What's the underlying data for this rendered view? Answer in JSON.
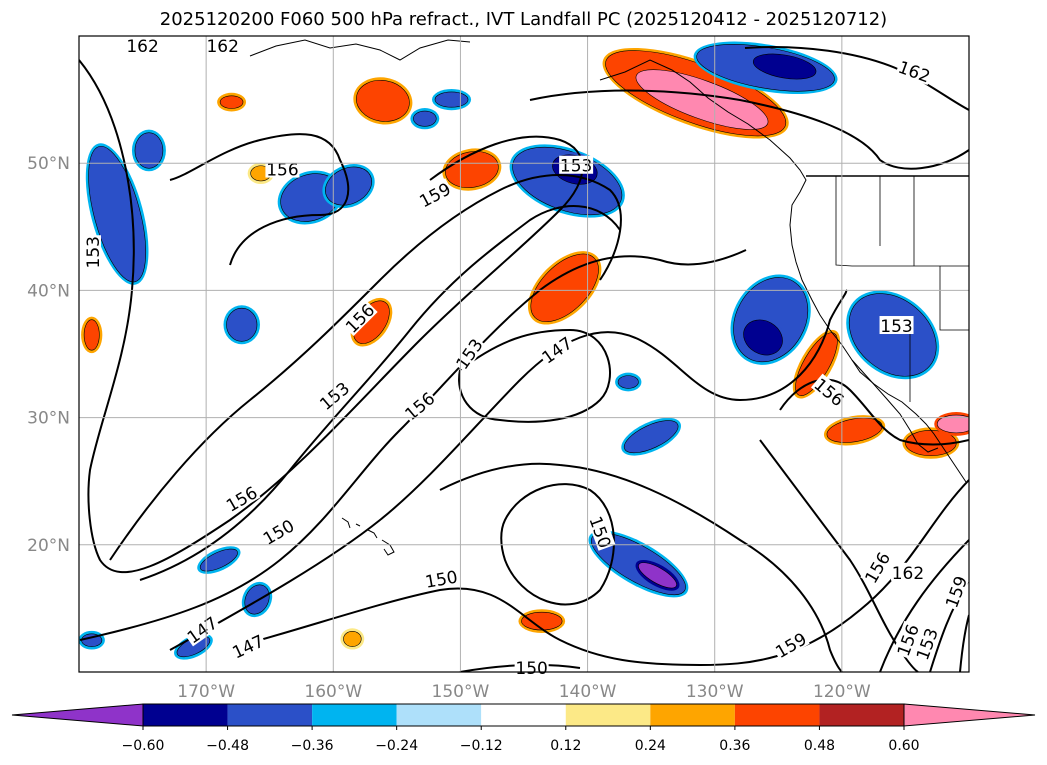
{
  "title": "2025120200 F060 500 hPa refract., IVT Landfall PC (2025120412 - 2025120712)",
  "chart_data": {
    "type": "contour-map",
    "title": "2025120200 F060 500 hPa refract., IVT Landfall PC (2025120412 - 2025120712)",
    "lon_range": [
      -180,
      -110
    ],
    "lat_range": [
      10,
      60
    ],
    "lat_ticks": [
      {
        "value": 20,
        "label": "20°N"
      },
      {
        "value": 30,
        "label": "30°N"
      },
      {
        "value": 40,
        "label": "40°N"
      },
      {
        "value": 50,
        "label": "50°N"
      }
    ],
    "lon_ticks": [
      {
        "value": -170,
        "label": "170°W"
      },
      {
        "value": -160,
        "label": "160°W"
      },
      {
        "value": -150,
        "label": "150°W"
      },
      {
        "value": -140,
        "label": "140°W"
      },
      {
        "value": -130,
        "label": "130°W"
      },
      {
        "value": -120,
        "label": "120°W"
      }
    ],
    "contour_labels": [
      {
        "text": "162",
        "lon": -175.0,
        "lat": 59.2,
        "rot": 0
      },
      {
        "text": "162",
        "lon": -168.7,
        "lat": 59.2,
        "rot": 0
      },
      {
        "text": "162",
        "lon": -114.3,
        "lat": 57.2,
        "rot": 20
      },
      {
        "text": "156",
        "lon": -164.0,
        "lat": 49.5,
        "rot": 0
      },
      {
        "text": "159",
        "lon": -152.0,
        "lat": 47.5,
        "rot": -28
      },
      {
        "text": "153",
        "lon": -178.9,
        "lat": 43.0,
        "rot": -90
      },
      {
        "text": "153",
        "lon": -140.9,
        "lat": 49.8,
        "rot": 0
      },
      {
        "text": "156",
        "lon": -157.9,
        "lat": 37.8,
        "rot": -45
      },
      {
        "text": "153",
        "lon": -159.9,
        "lat": 31.7,
        "rot": -40
      },
      {
        "text": "153",
        "lon": -149.3,
        "lat": 35.0,
        "rot": -55
      },
      {
        "text": "156",
        "lon": -153.2,
        "lat": 30.9,
        "rot": -40
      },
      {
        "text": "147",
        "lon": -142.4,
        "lat": 35.3,
        "rot": -35
      },
      {
        "text": "156",
        "lon": -121.0,
        "lat": 32.0,
        "rot": 40
      },
      {
        "text": "153",
        "lon": -115.7,
        "lat": 37.2,
        "rot": 0
      },
      {
        "text": "156",
        "lon": -167.2,
        "lat": 23.6,
        "rot": -30
      },
      {
        "text": "150",
        "lon": -164.3,
        "lat": 21.0,
        "rot": -30
      },
      {
        "text": "150",
        "lon": -151.5,
        "lat": 17.3,
        "rot": -10
      },
      {
        "text": "150",
        "lon": -139.0,
        "lat": 21.0,
        "rot": 70
      },
      {
        "text": "147",
        "lon": -170.3,
        "lat": 13.3,
        "rot": -35
      },
      {
        "text": "147",
        "lon": -166.7,
        "lat": 12.0,
        "rot": -25
      },
      {
        "text": "150",
        "lon": -144.4,
        "lat": 10.3,
        "rot": 0
      },
      {
        "text": "159",
        "lon": -124.0,
        "lat": 12.1,
        "rot": -30
      },
      {
        "text": "156",
        "lon": -117.2,
        "lat": 18.2,
        "rot": -60
      },
      {
        "text": "162",
        "lon": -114.8,
        "lat": 17.8,
        "rot": 0
      },
      {
        "text": "159",
        "lon": -111.0,
        "lat": 16.3,
        "rot": -70
      },
      {
        "text": "156",
        "lon": -114.8,
        "lat": 12.5,
        "rot": -70
      },
      {
        "text": "153",
        "lon": -113.3,
        "lat": 12.2,
        "rot": -70
      }
    ],
    "colorbar": {
      "ticks": [
        "−0.60",
        "−0.48",
        "−0.36",
        "−0.24",
        "−0.12",
        "0.12",
        "0.24",
        "0.36",
        "0.48",
        "0.60"
      ],
      "colors": [
        "#8f33c9",
        "#000090",
        "#2b50c8",
        "#00b4f0",
        "#aee0fa",
        "#ffffff",
        "#fce987",
        "#fea500",
        "#fd4400",
        "#b22222",
        "#ff88b0"
      ]
    },
    "shading_blobs": [
      {
        "lon": -179.0,
        "lat": 36.5,
        "rx": 0.6,
        "ry": 1.2,
        "color": "#fd4400",
        "rot": 0
      },
      {
        "lon": -177.0,
        "lat": 46.0,
        "rx": 1.8,
        "ry": 5.5,
        "color": "#2b50c8",
        "rot": -15
      },
      {
        "lon": -174.5,
        "lat": 51.0,
        "rx": 1.1,
        "ry": 1.4,
        "color": "#2b50c8",
        "rot": 0
      },
      {
        "lon": -168.0,
        "lat": 54.8,
        "rx": 0.9,
        "ry": 0.5,
        "color": "#fd4400",
        "rot": 0
      },
      {
        "lon": -165.7,
        "lat": 49.2,
        "rx": 0.8,
        "ry": 0.6,
        "color": "#fea500",
        "rot": 0
      },
      {
        "lon": -161.8,
        "lat": 47.3,
        "rx": 2.4,
        "ry": 1.8,
        "color": "#2b50c8",
        "rot": -20
      },
      {
        "lon": -158.8,
        "lat": 48.2,
        "rx": 1.9,
        "ry": 1.4,
        "color": "#2b50c8",
        "rot": -25
      },
      {
        "lon": -156.1,
        "lat": 54.9,
        "rx": 2.1,
        "ry": 1.6,
        "color": "#fd4400",
        "rot": 10
      },
      {
        "lon": -150.7,
        "lat": 55.0,
        "rx": 1.3,
        "ry": 0.6,
        "color": "#2b50c8",
        "rot": 0
      },
      {
        "lon": -152.8,
        "lat": 53.5,
        "rx": 0.9,
        "ry": 0.6,
        "color": "#2b50c8",
        "rot": 0
      },
      {
        "lon": -167.2,
        "lat": 37.3,
        "rx": 1.2,
        "ry": 1.3,
        "color": "#2b50c8",
        "rot": 0
      },
      {
        "lon": -157.0,
        "lat": 37.5,
        "rx": 1.1,
        "ry": 1.9,
        "color": "#fd4400",
        "rot": 35
      },
      {
        "lon": -149.1,
        "lat": 49.5,
        "rx": 2.1,
        "ry": 1.4,
        "color": "#fd4400",
        "rot": -10
      },
      {
        "lon": -141.6,
        "lat": 48.6,
        "rx": 4.5,
        "ry": 2.3,
        "color": "#2b50c8",
        "rot": 20
      },
      {
        "lon": -141.0,
        "lat": 49.5,
        "rx": 1.8,
        "ry": 1.1,
        "color": "#000090",
        "rot": 15
      },
      {
        "lon": -141.8,
        "lat": 40.2,
        "rx": 1.8,
        "ry": 3.3,
        "color": "#fd4400",
        "rot": 45
      },
      {
        "lon": -131.5,
        "lat": 55.5,
        "rx": 7.5,
        "ry": 2.3,
        "color": "#fd4400",
        "rot": 20
      },
      {
        "lon": -131.0,
        "lat": 55.0,
        "rx": 5.5,
        "ry": 1.5,
        "color": "#ff88b0",
        "rot": 20
      },
      {
        "lon": -126.0,
        "lat": 57.5,
        "rx": 5.5,
        "ry": 1.6,
        "color": "#2b50c8",
        "rot": 10
      },
      {
        "lon": -124.5,
        "lat": 57.6,
        "rx": 2.5,
        "ry": 0.9,
        "color": "#000090",
        "rot": 10
      },
      {
        "lon": -135.0,
        "lat": 28.5,
        "rx": 2.3,
        "ry": 0.9,
        "color": "#2b50c8",
        "rot": -25
      },
      {
        "lon": -136.8,
        "lat": 32.8,
        "rx": 0.8,
        "ry": 0.5,
        "color": "#2b50c8",
        "rot": 0
      },
      {
        "lon": -125.6,
        "lat": 37.7,
        "rx": 2.7,
        "ry": 3.5,
        "color": "#2b50c8",
        "rot": 30
      },
      {
        "lon": -126.2,
        "lat": 36.3,
        "rx": 1.6,
        "ry": 1.3,
        "color": "#000090",
        "rot": 30
      },
      {
        "lon": -122.0,
        "lat": 34.2,
        "rx": 1.0,
        "ry": 2.8,
        "color": "#fd4400",
        "rot": 30
      },
      {
        "lon": -116.0,
        "lat": 36.5,
        "rx": 3.8,
        "ry": 2.8,
        "color": "#2b50c8",
        "rot": 40
      },
      {
        "lon": -119.0,
        "lat": 29.0,
        "rx": 2.2,
        "ry": 0.9,
        "color": "#fd4400",
        "rot": -10
      },
      {
        "lon": -113.0,
        "lat": 28.0,
        "rx": 2.0,
        "ry": 1.0,
        "color": "#fd4400",
        "rot": 0
      },
      {
        "lon": -111.0,
        "lat": 29.5,
        "rx": 1.5,
        "ry": 0.7,
        "color": "#ff88b0",
        "rot": 0
      },
      {
        "lon": -136.0,
        "lat": 18.5,
        "rx": 4.2,
        "ry": 1.4,
        "color": "#2b50c8",
        "rot": 30
      },
      {
        "lon": -134.5,
        "lat": 17.6,
        "rx": 1.7,
        "ry": 0.6,
        "color": "#8f33c9",
        "rot": 30
      },
      {
        "lon": -169.0,
        "lat": 18.8,
        "rx": 1.6,
        "ry": 0.6,
        "color": "#2b50c8",
        "rot": -25
      },
      {
        "lon": -166.0,
        "lat": 15.7,
        "rx": 0.9,
        "ry": 1.2,
        "color": "#2b50c8",
        "rot": 25
      },
      {
        "lon": -143.6,
        "lat": 14.0,
        "rx": 1.6,
        "ry": 0.7,
        "color": "#fd4400",
        "rot": 0
      },
      {
        "lon": -158.5,
        "lat": 12.6,
        "rx": 0.7,
        "ry": 0.6,
        "color": "#fea500",
        "rot": 0
      },
      {
        "lon": -171.0,
        "lat": 12.0,
        "rx": 1.4,
        "ry": 0.6,
        "color": "#2b50c8",
        "rot": -25
      },
      {
        "lon": -179.0,
        "lat": 12.5,
        "rx": 0.8,
        "ry": 0.5,
        "color": "#2b50c8",
        "rot": 0
      }
    ]
  }
}
